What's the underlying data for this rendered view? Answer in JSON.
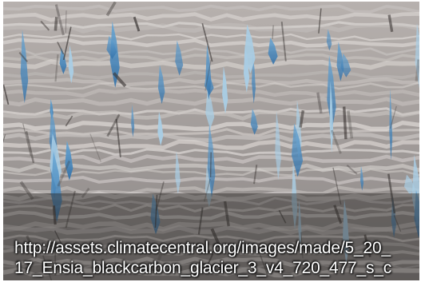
{
  "photo": {
    "subject": "glacier-crevasses",
    "colors": {
      "ice_blue": "#3e86c4",
      "ice_light": "#a9cde4",
      "snow_gray": "#c9c4c2",
      "dust_dark": "#3b3634"
    }
  },
  "caption": {
    "line1": "http://assets.climatecentral.org/images/made/5_20_",
    "line2": "17_Ensia_blackcarbon_glacier_3_v4_720_477_s_c"
  }
}
